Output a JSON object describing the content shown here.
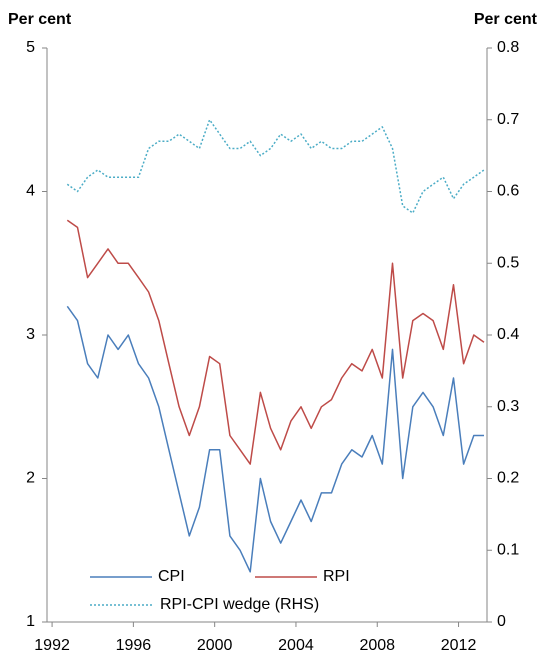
{
  "chart_data": {
    "type": "line",
    "y_label": "Per cent",
    "y2_label": "Per cent",
    "x": [
      1992.75,
      1993.25,
      1993.75,
      1994.25,
      1994.75,
      1995.25,
      1995.75,
      1996.25,
      1996.75,
      1997.25,
      1997.75,
      1998.25,
      1998.75,
      1999.25,
      1999.75,
      2000.25,
      2000.75,
      2001.25,
      2001.75,
      2002.25,
      2002.75,
      2003.25,
      2003.75,
      2004.25,
      2004.75,
      2005.25,
      2005.75,
      2006.25,
      2006.75,
      2007.25,
      2007.75,
      2008.25,
      2008.75,
      2009.25,
      2009.75,
      2010.25,
      2010.75,
      2011.25,
      2011.75,
      2012.25,
      2012.75,
      2013.25
    ],
    "series": [
      {
        "name": "CPI",
        "color": "#4a7ebb",
        "axis": "y",
        "dash": false,
        "values": [
          3.2,
          3.1,
          2.8,
          2.7,
          3.0,
          2.9,
          3.0,
          2.8,
          2.7,
          2.5,
          2.2,
          1.9,
          1.6,
          1.8,
          2.2,
          2.2,
          1.6,
          1.5,
          1.35,
          2.0,
          1.7,
          1.55,
          1.7,
          1.85,
          1.7,
          1.9,
          1.9,
          2.1,
          2.2,
          2.15,
          2.3,
          2.1,
          2.9,
          2.0,
          2.5,
          2.6,
          2.5,
          2.3,
          2.7,
          2.1,
          2.3,
          2.3
        ]
      },
      {
        "name": "RPI",
        "color": "#be4b48",
        "axis": "y",
        "dash": false,
        "values": [
          3.8,
          3.75,
          3.4,
          3.5,
          3.6,
          3.5,
          3.5,
          3.4,
          3.3,
          3.1,
          2.8,
          2.5,
          2.3,
          2.5,
          2.85,
          2.8,
          2.3,
          2.2,
          2.1,
          2.6,
          2.35,
          2.2,
          2.4,
          2.5,
          2.35,
          2.5,
          2.55,
          2.7,
          2.8,
          2.75,
          2.9,
          2.7,
          3.5,
          2.7,
          3.1,
          3.15,
          3.1,
          2.9,
          3.35,
          2.8,
          3.0,
          2.95
        ]
      },
      {
        "name": "RPI-CPI wedge (RHS)",
        "color": "#4bacc6",
        "axis": "y2",
        "dash": true,
        "values": [
          0.61,
          0.6,
          0.62,
          0.63,
          0.62,
          0.62,
          0.62,
          0.62,
          0.66,
          0.67,
          0.67,
          0.68,
          0.67,
          0.66,
          0.7,
          0.68,
          0.66,
          0.66,
          0.67,
          0.65,
          0.66,
          0.68,
          0.67,
          0.68,
          0.66,
          0.67,
          0.66,
          0.66,
          0.67,
          0.67,
          0.68,
          0.69,
          0.66,
          0.58,
          0.57,
          0.6,
          0.61,
          0.62,
          0.59,
          0.61,
          0.62,
          0.63
        ]
      }
    ],
    "xlim": [
      1991.75,
      2013.4
    ],
    "xticks": [
      1992,
      1996,
      2000,
      2004,
      2008,
      2012
    ],
    "ylim": [
      1,
      5
    ],
    "yticks": [
      1,
      2,
      3,
      4,
      5
    ],
    "y2lim": [
      0,
      0.8
    ],
    "y2ticks": [
      0,
      0.1,
      0.2,
      0.3,
      0.4,
      0.5,
      0.6,
      0.7,
      0.8
    ],
    "grid": false
  }
}
